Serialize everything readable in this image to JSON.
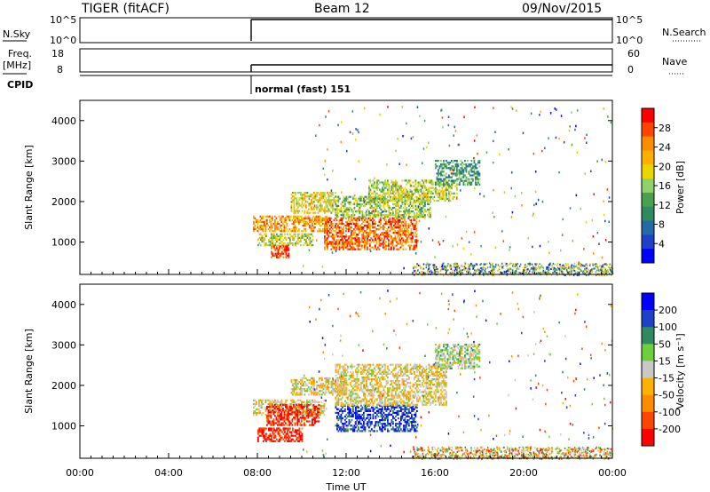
{
  "header": {
    "radar_label": "TIGER (fitACF)",
    "beam_label": "Beam 12",
    "date_label": "09/Nov/2015"
  },
  "param_panel": {
    "nsky_label": "N.Sky",
    "nsky_ticks": [
      "10^5",
      "10^0"
    ],
    "freq_label": "Freq.",
    "freq_unit": "[MHz]",
    "freq_ticks": [
      "18",
      "8"
    ],
    "cpid_label": "CPID",
    "right_ticks_top": [
      "10^5",
      "10^0"
    ],
    "right_ticks_mid": [
      "60",
      "0"
    ],
    "nsearch_label": "N.Search",
    "nave_label": "Nave",
    "cpid_value": "normal (fast) 151"
  },
  "chart_data": [
    {
      "type": "heatmap",
      "name": "power",
      "ylabel": "Slant Range [km]",
      "y_ticks": [
        "4000",
        "3000",
        "2000",
        "1000"
      ],
      "y_values": [
        4000,
        3000,
        2000,
        1000
      ],
      "ylim": [
        200,
        4500
      ],
      "xlim": [
        0,
        24
      ],
      "colorbar_label": "Power [dB]",
      "colorbar_ticks": [
        "28",
        "24",
        "20",
        "16",
        "12",
        "8",
        "4"
      ],
      "colorbar_colors": [
        "#ff0000",
        "#ff4500",
        "#ff8c00",
        "#ffb000",
        "#e8d800",
        "#8fd26a",
        "#4aa050",
        "#2f8a60",
        "#236aa6",
        "#1f40c8",
        "#0000ff"
      ],
      "regions": [
        {
          "t0": 7.8,
          "t1": 11.2,
          "r0": 1250,
          "r1": 1650,
          "level": 0.75
        },
        {
          "t0": 8.0,
          "t1": 10.5,
          "r0": 900,
          "r1": 1200,
          "level": 0.55
        },
        {
          "t0": 8.6,
          "t1": 9.4,
          "r0": 600,
          "r1": 900,
          "level": 0.95
        },
        {
          "t0": 9.5,
          "t1": 11.5,
          "r0": 1700,
          "r1": 2200,
          "level": 0.6
        },
        {
          "t0": 11.0,
          "t1": 15.2,
          "r0": 800,
          "r1": 1600,
          "level": 0.85
        },
        {
          "t0": 11.5,
          "t1": 15.8,
          "r0": 1600,
          "r1": 2100,
          "level": 0.5
        },
        {
          "t0": 13.0,
          "t1": 17.0,
          "r0": 2000,
          "r1": 2500,
          "level": 0.55
        },
        {
          "t0": 16.0,
          "t1": 18.0,
          "r0": 2400,
          "r1": 3000,
          "level": 0.35
        }
      ]
    },
    {
      "type": "heatmap",
      "name": "velocity",
      "ylabel": "Slant Range [km]",
      "xlabel": "Time UT",
      "x_ticks": [
        "00:00",
        "04:00",
        "08:00",
        "12:00",
        "16:00",
        "20:00",
        "00:00"
      ],
      "x_values": [
        0,
        4,
        8,
        12,
        16,
        20,
        24
      ],
      "y_ticks": [
        "4000",
        "3000",
        "2000",
        "1000"
      ],
      "y_values": [
        4000,
        3000,
        2000,
        1000
      ],
      "ylim": [
        200,
        4500
      ],
      "xlim": [
        0,
        24
      ],
      "colorbar_label": "Velocity [m s⁻¹]",
      "colorbar_ticks": [
        "200",
        "100",
        "50",
        "15",
        "-15",
        "-50",
        "-100",
        "-200"
      ],
      "colorbar_colors": [
        "#0000ff",
        "#1f40c8",
        "#2f8a60",
        "#6ccf3c",
        "#c8c8c8",
        "#ffb000",
        "#ff8c00",
        "#ff4500",
        "#ff0000"
      ],
      "regions": [
        {
          "t0": 7.8,
          "t1": 11.0,
          "r0": 1250,
          "r1": 1650,
          "level": 0.45
        },
        {
          "t0": 8.4,
          "t1": 10.8,
          "r0": 1000,
          "r1": 1500,
          "level": 0.05
        },
        {
          "t0": 8.0,
          "t1": 10.0,
          "r0": 600,
          "r1": 950,
          "level": 0.05
        },
        {
          "t0": 9.5,
          "t1": 12.0,
          "r0": 1750,
          "r1": 2200,
          "level": 0.45
        },
        {
          "t0": 11.5,
          "t1": 15.2,
          "r0": 850,
          "r1": 1500,
          "level": 0.9
        },
        {
          "t0": 11.5,
          "t1": 16.5,
          "r0": 1500,
          "r1": 2500,
          "level": 0.45
        },
        {
          "t0": 16.0,
          "t1": 18.0,
          "r0": 2400,
          "r1": 3000,
          "level": 0.55
        }
      ]
    }
  ]
}
